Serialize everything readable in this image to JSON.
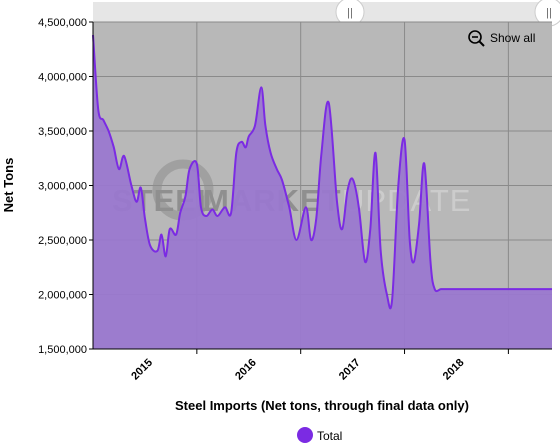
{
  "chart_data": {
    "type": "area",
    "title": "",
    "xlabel": "Steel Imports (Net tons, through final data only)",
    "ylabel": "Net Tons",
    "ylim": [
      1500000,
      4500000
    ],
    "y_ticks": [
      1500000,
      2000000,
      2500000,
      3000000,
      3500000,
      4000000,
      4500000
    ],
    "y_tick_labels": [
      "1,500,000",
      "2,000,000",
      "2,500,000",
      "3,000,000",
      "3,500,000",
      "4,000,000",
      "4,500,000"
    ],
    "x_range": [
      2014.0,
      2018.42
    ],
    "x_ticks": [
      2015,
      2016,
      2017,
      2018
    ],
    "x_tick_labels": [
      "2015",
      "2016",
      "2017",
      "2018"
    ],
    "grid": true,
    "legend_position": "bottom-center",
    "series": [
      {
        "name": "Total",
        "color": "#7b2be3",
        "fill": "#9a78cf",
        "x": [
          2014.0,
          2014.05,
          2014.1,
          2014.15,
          2014.2,
          2014.25,
          2014.3,
          2014.37,
          2014.42,
          2014.46,
          2014.5,
          2014.55,
          2014.62,
          2014.66,
          2014.7,
          2014.74,
          2014.8,
          2014.84,
          2014.89,
          2014.93,
          2015.0,
          2015.04,
          2015.09,
          2015.15,
          2015.2,
          2015.27,
          2015.33,
          2015.38,
          2015.43,
          2015.47,
          2015.5,
          2015.56,
          2015.62,
          2015.66,
          2015.71,
          2015.77,
          2015.82,
          2015.89,
          2015.96,
          2016.05,
          2016.1,
          2016.15,
          2016.2,
          2016.27,
          2016.35,
          2016.4,
          2016.45,
          2016.5,
          2016.56,
          2016.62,
          2016.67,
          2016.72,
          2016.77,
          2016.83,
          2016.88,
          2016.94,
          2017.0,
          2017.05,
          2017.09,
          2017.14,
          2017.19,
          2017.25,
          2017.29,
          2017.35,
          2017.4,
          2017.45,
          2017.5,
          2017.55,
          2017.6,
          2017.65,
          2017.7,
          2017.76,
          2017.82,
          2017.88,
          2017.94,
          2018.0,
          2018.04,
          2018.08,
          2018.13,
          2018.18,
          2018.23,
          2018.27,
          2018.31,
          2018.36,
          2018.4,
          2018.42
        ],
        "values": [
          4380000,
          3700000,
          3600000,
          3500000,
          3350000,
          3150000,
          3270000,
          3000000,
          2850000,
          2980000,
          2700000,
          2450000,
          2400000,
          2550000,
          2350000,
          2600000,
          2550000,
          2750000,
          2900000,
          3150000,
          3200000,
          2800000,
          2720000,
          2780000,
          2720000,
          2800000,
          2750000,
          3300000,
          3400000,
          3350000,
          3450000,
          3550000,
          3900000,
          3550000,
          3300000,
          3150000,
          3050000,
          2800000,
          2500000,
          2800000,
          2500000,
          2700000,
          3300000,
          3760000,
          2850000,
          2600000,
          2950000,
          3060000,
          2800000,
          2300000,
          2600000,
          3300000,
          2400000,
          2000000,
          1950000,
          3000000,
          3420000,
          2500000,
          2300000,
          2650000,
          3200000,
          2300000,
          2050000,
          2050000,
          2050000,
          2050000,
          2050000,
          2050000,
          2050000,
          2050000,
          2050000,
          2050000,
          2050000,
          2050000,
          2050000,
          2050000,
          2050000,
          2050000,
          2050000,
          2050000,
          2050000,
          2050000,
          2050000,
          2050000,
          2050000,
          2050000
        ]
      }
    ]
  },
  "navigator": {
    "show_all_label": "Show all",
    "left_handle_glyph": "||",
    "right_handle_glyph": "||"
  },
  "watermark": {
    "word1": "STEEL",
    "word2": "MARKET",
    "word3": "UPDATE"
  },
  "legend": {
    "label": "Total",
    "marker_color": "#7b2be3"
  },
  "colors": {
    "plot_background": "#b8b8b8",
    "grid": "#8a8a8a",
    "line": "#7b2be3",
    "fill": "#9a78cf",
    "navigator": "#e6e6e6"
  }
}
